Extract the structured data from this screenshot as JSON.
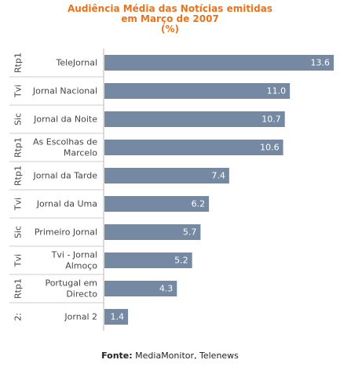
{
  "chart_data": {
    "type": "bar",
    "orientation": "horizontal",
    "title_lines": [
      "Audiência Média das Notícias emitidas",
      "em Março de 2007",
      "(%)"
    ],
    "channel_labels": [
      "Rtp1",
      "Tvi",
      "Sic",
      "Rtp1",
      "Rtp1",
      "Tvi",
      "Sic",
      "Tvi",
      "Rtp1",
      "2:"
    ],
    "categories": [
      [
        "TeleJornal"
      ],
      [
        "Jornal Nacional"
      ],
      [
        "Jornal da Noite"
      ],
      [
        "As Escolhas de",
        "Marcelo"
      ],
      [
        "Jornal da Tarde"
      ],
      [
        "Jornal da Uma"
      ],
      [
        "Primeiro Jornal"
      ],
      [
        "Tvi - Jornal",
        "Almoço"
      ],
      [
        "Portugal em",
        "Directo"
      ],
      [
        "Jornal 2"
      ]
    ],
    "values": [
      13.6,
      11.0,
      10.7,
      10.6,
      7.4,
      6.2,
      5.7,
      5.2,
      4.3,
      1.4
    ],
    "value_labels": [
      "13.6",
      "11.0",
      "10.7",
      "10.6",
      "7.4",
      "6.2",
      "5.7",
      "5.2",
      "4.3",
      "1.4"
    ],
    "xlim": [
      0,
      13.6
    ],
    "bar_color": "#7689a3",
    "value_label_color": "#ffffff",
    "grid": false
  },
  "source": {
    "label": "Fonte:",
    "text": " MediaMonitor, Telenews"
  },
  "colors": {
    "title": "#e8731a",
    "separator": "#cccccc",
    "axis": "#b7b7b7"
  }
}
